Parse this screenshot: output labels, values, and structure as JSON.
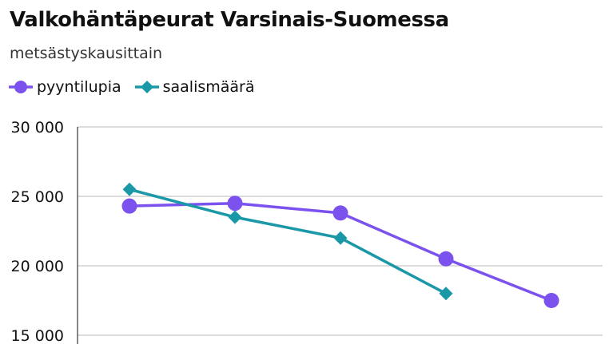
{
  "chart_data": {
    "type": "line",
    "title": "Valkohäntäpeurat Varsinais-Suomessa",
    "subtitle": "metsästyskausittain",
    "x": [
      1,
      2,
      3,
      4,
      5
    ],
    "ylim": [
      15000,
      30000
    ],
    "yticks": [
      15000,
      20000,
      25000,
      30000
    ],
    "ytick_labels": [
      "15 000",
      "20 000",
      "25 000",
      "30 000"
    ],
    "grid": true,
    "legend_position": "top-left",
    "series": [
      {
        "name": "pyyntilupia",
        "color": "#7b52ee",
        "marker": "circle",
        "values": [
          24300,
          24500,
          23800,
          20500,
          17500
        ]
      },
      {
        "name": "saalismäärä",
        "color": "#1b98a8",
        "marker": "diamond",
        "values": [
          25500,
          23500,
          22000,
          18000,
          null
        ]
      }
    ]
  }
}
